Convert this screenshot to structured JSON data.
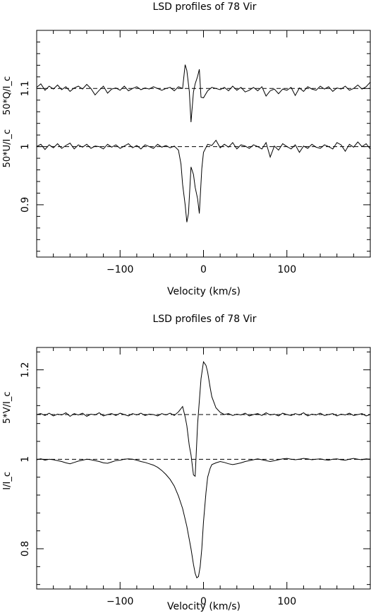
{
  "chart_data": [
    {
      "type": "line",
      "title": "LSD profiles of 78 Vir",
      "xlabel": "Velocity (km/s)",
      "ylabel_bottom": "50*U/I_c",
      "ylabel_top": "50*Q/I_c",
      "xlim": [
        -200,
        200
      ],
      "ylim": [
        0.81,
        1.2
      ],
      "x_ticks": [
        -100,
        0,
        100
      ],
      "x_tick_labels": [
        "−100",
        "0",
        "100"
      ],
      "y_ticks": [
        0.9,
        1.0,
        1.1
      ],
      "y_tick_labels": [
        "0.9",
        "1",
        "1.1"
      ],
      "reference_lines": [
        1.0,
        1.1
      ],
      "series": [
        {
          "x": [
            -200,
            -195,
            -190,
            -185,
            -180,
            -175,
            -170,
            -165,
            -160,
            -155,
            -150,
            -145,
            -140,
            -135,
            -130,
            -125,
            -120,
            -115,
            -110,
            -105,
            -100,
            -95,
            -90,
            -85,
            -80,
            -75,
            -70,
            -65,
            -60,
            -55,
            -50,
            -45,
            -40,
            -35,
            -30,
            -25,
            -22,
            -20,
            -17,
            -15,
            -12,
            -10,
            -7,
            -5,
            -3,
            0,
            5,
            10,
            15,
            20,
            25,
            30,
            35,
            40,
            45,
            50,
            55,
            60,
            65,
            70,
            75,
            80,
            85,
            90,
            95,
            100,
            105,
            110,
            115,
            120,
            125,
            130,
            135,
            140,
            145,
            150,
            155,
            160,
            165,
            170,
            175,
            180,
            185,
            190,
            195,
            200
          ],
          "values": [
            1.102,
            1.108,
            1.097,
            1.104,
            1.099,
            1.106,
            1.098,
            1.103,
            1.095,
            1.101,
            1.104,
            1.099,
            1.107,
            1.1,
            1.089,
            1.097,
            1.104,
            1.092,
            1.099,
            1.101,
            1.097,
            1.104,
            1.096,
            1.1,
            1.103,
            1.098,
            1.101,
            1.099,
            1.103,
            1.1,
            1.097,
            1.1,
            1.102,
            1.096,
            1.103,
            1.1,
            1.141,
            1.131,
            1.095,
            1.042,
            1.094,
            1.108,
            1.121,
            1.133,
            1.085,
            1.084,
            1.096,
            1.102,
            1.1,
            1.098,
            1.102,
            1.096,
            1.104,
            1.097,
            1.102,
            1.094,
            1.097,
            1.102,
            1.096,
            1.103,
            1.087,
            1.096,
            1.099,
            1.091,
            1.099,
            1.097,
            1.102,
            1.088,
            1.101,
            1.095,
            1.103,
            1.099,
            1.097,
            1.104,
            1.099,
            1.103,
            1.095,
            1.101,
            1.099,
            1.104,
            1.097,
            1.1,
            1.106,
            1.099,
            1.103,
            1.111
          ]
        },
        {
          "x": [
            -200,
            -195,
            -190,
            -185,
            -180,
            -175,
            -170,
            -165,
            -160,
            -155,
            -150,
            -145,
            -140,
            -135,
            -130,
            -125,
            -120,
            -115,
            -110,
            -105,
            -100,
            -95,
            -90,
            -85,
            -80,
            -75,
            -70,
            -65,
            -60,
            -55,
            -50,
            -45,
            -40,
            -35,
            -30,
            -27,
            -25,
            -22,
            -20,
            -18,
            -15,
            -12,
            -10,
            -7,
            -5,
            -2,
            0,
            5,
            10,
            15,
            20,
            25,
            30,
            35,
            40,
            45,
            50,
            55,
            60,
            65,
            70,
            75,
            80,
            85,
            90,
            95,
            100,
            105,
            110,
            115,
            120,
            125,
            130,
            135,
            140,
            145,
            150,
            155,
            160,
            165,
            170,
            175,
            180,
            185,
            190,
            195,
            200
          ],
          "values": [
            1.0,
            1.004,
            0.995,
            1.003,
            0.998,
            1.005,
            0.997,
            1.002,
            1.006,
            0.996,
            1.003,
            0.999,
            1.004,
            0.997,
            1.001,
            1.0,
            0.996,
            1.004,
            0.999,
            1.003,
            0.997,
            1.001,
            1.005,
            0.998,
            1.002,
            0.996,
            1.003,
            1.0,
            0.997,
            1.004,
            0.999,
            1.002,
            0.998,
            1.001,
            0.994,
            0.97,
            0.935,
            0.9,
            0.87,
            0.885,
            0.965,
            0.952,
            0.93,
            0.91,
            0.885,
            0.962,
            0.99,
            1.004,
            1.002,
            1.011,
            0.998,
            1.004,
            0.999,
            1.007,
            0.996,
            1.003,
            1.001,
            0.997,
            1.003,
            1.0,
            0.996,
            1.007,
            0.982,
            1.001,
            0.994,
            1.005,
            1.0,
            0.996,
            1.003,
            0.99,
            1.001,
            0.997,
            1.004,
            0.999,
            0.997,
            1.003,
            1.0,
            0.996,
            1.007,
            1.003,
            0.992,
            1.004,
            0.999,
            1.008,
            1.0,
            1.005,
            0.996
          ]
        }
      ]
    },
    {
      "type": "line",
      "title": "LSD profiles of 78 Vir",
      "xlabel": "Velocity (km/s)",
      "ylabel_bottom": "I/I_c",
      "ylabel_top": "5*V/I_c",
      "xlim": [
        -200,
        200
      ],
      "ylim": [
        0.71,
        1.25
      ],
      "x_ticks": [
        -100,
        0,
        100
      ],
      "x_tick_labels": [
        "−100",
        "0",
        "100"
      ],
      "y_ticks": [
        0.8,
        1.0,
        1.2
      ],
      "y_tick_labels": [
        "0.8",
        "1",
        "1.2"
      ],
      "reference_lines": [
        1.0,
        1.1
      ],
      "series": [
        {
          "x": [
            -200,
            -195,
            -190,
            -185,
            -180,
            -175,
            -170,
            -165,
            -160,
            -155,
            -150,
            -145,
            -140,
            -135,
            -130,
            -125,
            -120,
            -115,
            -110,
            -105,
            -100,
            -95,
            -90,
            -85,
            -80,
            -75,
            -70,
            -65,
            -60,
            -55,
            -50,
            -45,
            -40,
            -35,
            -30,
            -25,
            -22,
            -20,
            -17,
            -15,
            -12,
            -10,
            -7,
            -5,
            -3,
            0,
            3,
            5,
            8,
            10,
            15,
            20,
            25,
            30,
            35,
            40,
            45,
            50,
            55,
            60,
            65,
            70,
            75,
            80,
            85,
            90,
            95,
            100,
            105,
            110,
            115,
            120,
            125,
            130,
            135,
            140,
            145,
            150,
            155,
            160,
            165,
            170,
            175,
            180,
            185,
            190,
            195,
            200
          ],
          "values": [
            1.1,
            1.102,
            1.098,
            1.103,
            1.097,
            1.101,
            1.099,
            1.104,
            1.096,
            1.102,
            1.099,
            1.103,
            1.096,
            1.101,
            1.099,
            1.104,
            1.097,
            1.1,
            1.102,
            1.098,
            1.103,
            1.1,
            1.097,
            1.102,
            1.099,
            1.103,
            1.098,
            1.101,
            1.1,
            1.097,
            1.102,
            1.099,
            1.103,
            1.098,
            1.106,
            1.118,
            1.095,
            1.075,
            1.03,
            1.01,
            0.965,
            0.962,
            1.08,
            1.13,
            1.18,
            1.218,
            1.21,
            1.195,
            1.16,
            1.14,
            1.115,
            1.105,
            1.1,
            1.102,
            1.098,
            1.101,
            1.099,
            1.103,
            1.097,
            1.1,
            1.102,
            1.098,
            1.104,
            1.099,
            1.101,
            1.097,
            1.103,
            1.1,
            1.098,
            1.102,
            1.099,
            1.104,
            1.097,
            1.101,
            1.099,
            1.103,
            1.098,
            1.1,
            1.102,
            1.097,
            1.101,
            1.099,
            1.103,
            1.098,
            1.1,
            1.102,
            1.097,
            1.1
          ]
        },
        {
          "x": [
            -200,
            -195,
            -190,
            -185,
            -180,
            -175,
            -170,
            -165,
            -160,
            -155,
            -150,
            -145,
            -140,
            -135,
            -130,
            -125,
            -120,
            -115,
            -110,
            -105,
            -100,
            -95,
            -90,
            -85,
            -80,
            -75,
            -70,
            -65,
            -60,
            -55,
            -50,
            -45,
            -40,
            -35,
            -30,
            -25,
            -20,
            -15,
            -12,
            -10,
            -8,
            -6,
            -4,
            -2,
            0,
            3,
            5,
            8,
            10,
            15,
            20,
            25,
            30,
            35,
            40,
            45,
            50,
            55,
            60,
            65,
            70,
            75,
            80,
            85,
            90,
            95,
            100,
            105,
            110,
            115,
            120,
            125,
            130,
            135,
            140,
            145,
            150,
            155,
            160,
            165,
            170,
            175,
            180,
            185,
            190,
            195,
            200
          ],
          "values": [
            0.999,
            1.001,
            0.998,
            1.0,
            0.999,
            0.997,
            0.995,
            0.992,
            0.99,
            0.993,
            0.996,
            0.998,
            1.0,
            0.999,
            0.997,
            0.995,
            0.992,
            0.991,
            0.994,
            0.997,
            0.998,
            1.0,
            1.001,
            1.0,
            0.998,
            0.995,
            0.993,
            0.99,
            0.987,
            0.982,
            0.975,
            0.966,
            0.955,
            0.94,
            0.918,
            0.89,
            0.85,
            0.8,
            0.765,
            0.745,
            0.735,
            0.738,
            0.76,
            0.8,
            0.86,
            0.925,
            0.96,
            0.98,
            0.988,
            0.992,
            0.995,
            0.993,
            0.99,
            0.988,
            0.99,
            0.992,
            0.995,
            0.997,
            0.999,
            1.001,
            0.999,
            0.997,
            0.995,
            0.997,
            0.999,
            1.001,
            1.002,
            1.0,
            0.999,
            1.0,
            1.002,
            1.001,
            0.999,
            1.0,
            1.001,
            0.999,
            0.998,
            1.0,
            1.001,
            0.999,
            0.998,
            1.0,
            1.002,
            1.0,
            0.999,
            1.001,
            1.0
          ]
        }
      ]
    }
  ]
}
